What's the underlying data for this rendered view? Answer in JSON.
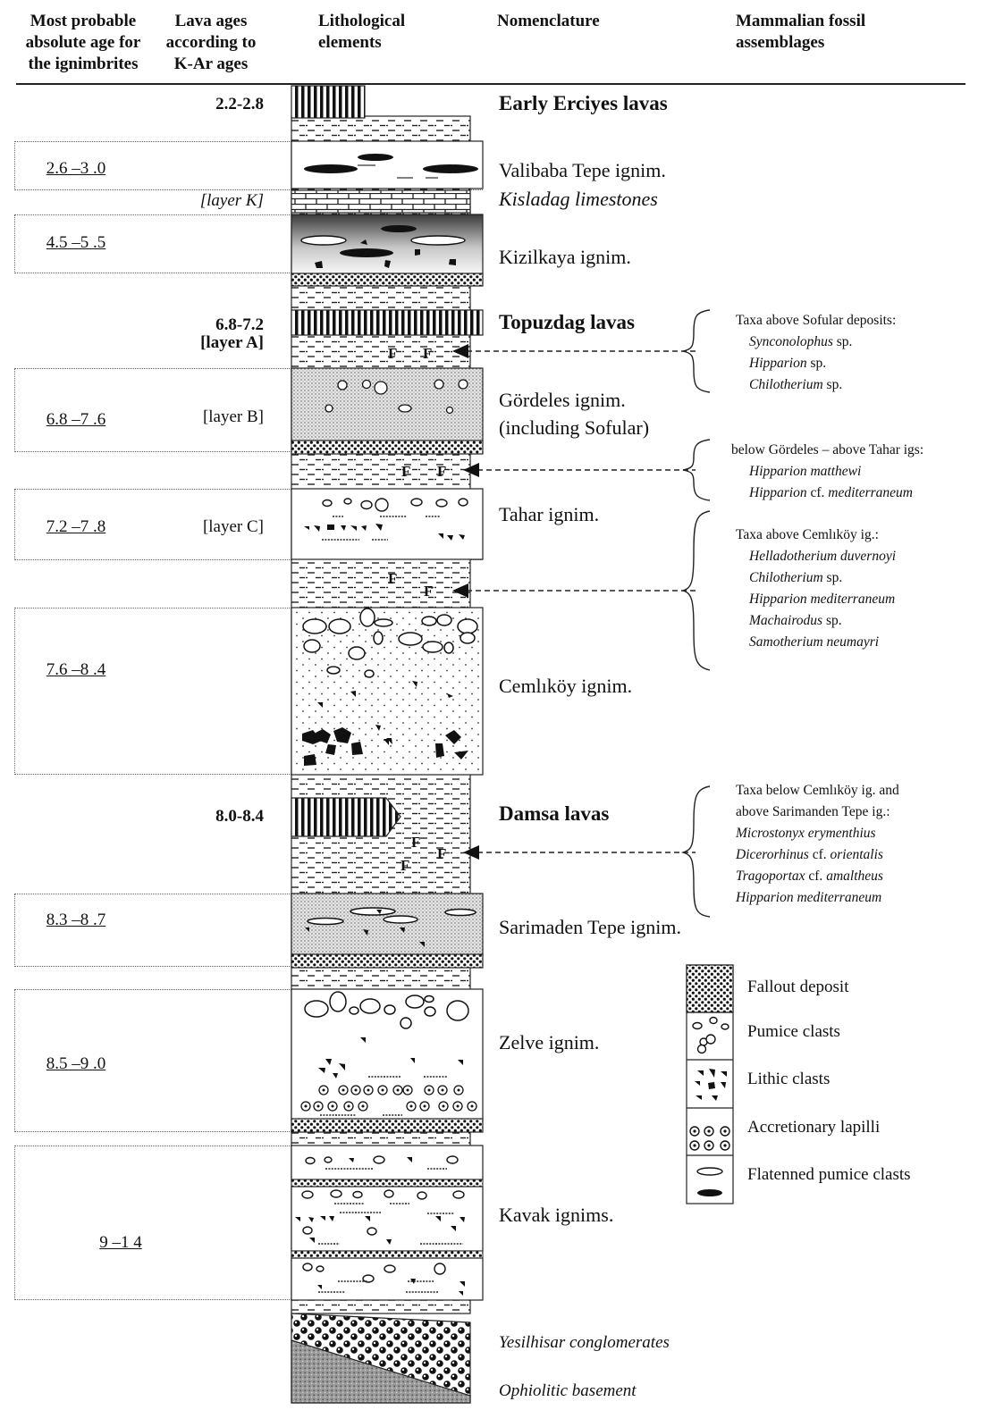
{
  "headers": {
    "col1": [
      "Most probable",
      "absolute age for",
      "the ignimbrites"
    ],
    "col2": [
      "Lava ages",
      "according to",
      "K-Ar ages"
    ],
    "col3": [
      "Lithological",
      "elements"
    ],
    "col4": "Nomenclature",
    "col5": [
      "Mammalian fossil",
      "assemblages"
    ]
  },
  "units": [
    {
      "name": "Early Erciyes lavas",
      "lava_age": "2.2-2.8",
      "style": "bold"
    },
    {
      "name": "Valibaba Tepe ignim.",
      "age": "2.6 –3 .0"
    },
    {
      "name": "Kisladag limestones",
      "layer": "[layer K]",
      "style": "italic"
    },
    {
      "name": "Kizilkaya ignim.",
      "age": "4.5 –5 .5"
    },
    {
      "name": "Topuzdag lavas",
      "lava_age": "6.8-7.2",
      "layer": "[layer A]",
      "style": "bold"
    },
    {
      "name": "Gördeles ignim.",
      "name2": "(including Sofular)",
      "age": "6.8 –7 .6",
      "layer": "[layer B]"
    },
    {
      "name": "Tahar ignim.",
      "age": "7.2 –7 .8",
      "layer": "[layer C]"
    },
    {
      "name": "Cemlıköy ignim.",
      "age": "7.6 –8 .4"
    },
    {
      "name": "Damsa lavas",
      "lava_age": "8.0-8.4",
      "style": "bold"
    },
    {
      "name": "Sarimaden Tepe ignim.",
      "age": "8.3 –8 .7"
    },
    {
      "name": "Zelve ignim.",
      "age": "8.5 –9 .0"
    },
    {
      "name": "Kavak ignims.",
      "age": "9 –1 4"
    },
    {
      "name": "Yesilhisar conglomerates",
      "style": "italic"
    },
    {
      "name": "Ophiolitic basement",
      "style": "italic"
    }
  ],
  "fossils": [
    {
      "lines": [
        [
          "Taxa above Sofular deposits:",
          ""
        ],
        [
          "Synconolophus",
          " sp."
        ],
        [
          "Hipparion",
          " sp."
        ],
        [
          "Chilotherium",
          " sp."
        ]
      ]
    },
    {
      "lines": [
        [
          "below Gördeles – above Tahar igs:",
          ""
        ],
        [
          "Hipparion matthewi",
          ""
        ],
        [
          "Hipparion",
          " cf. "
        ],
        [
          "mediterraneum",
          ""
        ]
      ]
    },
    {
      "lines": [
        [
          "Taxa above Cemlıköy ig.:",
          ""
        ],
        [
          "Helladotherium duvernoyi",
          ""
        ],
        [
          "Chilotherium",
          " sp."
        ],
        [
          "Hipparion mediterraneum",
          ""
        ],
        [
          "Machairodus",
          " sp."
        ],
        [
          "Samotherium neumayri",
          ""
        ]
      ]
    },
    {
      "lines": [
        [
          "Taxa below Cemlıköy ig. and",
          ""
        ],
        [
          "above Sarimanden Tepe ig.:",
          ""
        ],
        [
          "Microstonyx erymenthius",
          ""
        ],
        [
          "Dicerorhinus",
          " cf. "
        ],
        [
          "Tragoportax",
          " cf. "
        ],
        [
          "Hipparion mediterraneum",
          ""
        ]
      ]
    }
  ],
  "legend": [
    "Fallout deposit",
    "Pumice clasts",
    "Lithic clasts",
    "Accretionary lapilli",
    "Flatenned pumice clasts"
  ],
  "fossil_marker": "F"
}
